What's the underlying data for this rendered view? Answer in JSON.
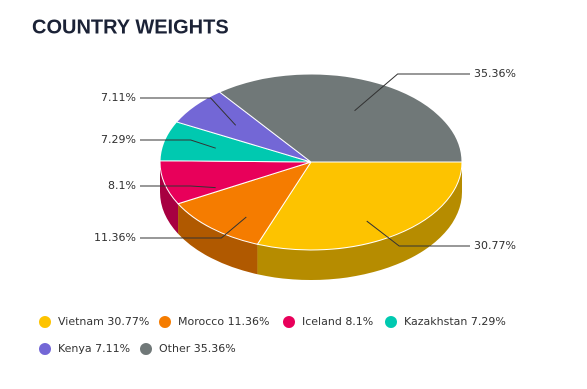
{
  "chart_data": {
    "type": "pie",
    "title": "COUNTRY WEIGHTS",
    "categories": [
      "Vietnam",
      "Morocco",
      "Iceland",
      "Kazakhstan",
      "Kenya",
      "Other"
    ],
    "values": [
      30.77,
      11.36,
      8.1,
      7.29,
      7.11,
      35.36
    ],
    "value_labels": [
      "30.77%",
      "11.36%",
      "8.1%",
      "7.29%",
      "7.11%",
      "35.36%"
    ],
    "colors": [
      "#fdc300",
      "#f57c00",
      "#e8005a",
      "#00c9b0",
      "#7367d6",
      "#707878"
    ],
    "legend": "bottom"
  }
}
